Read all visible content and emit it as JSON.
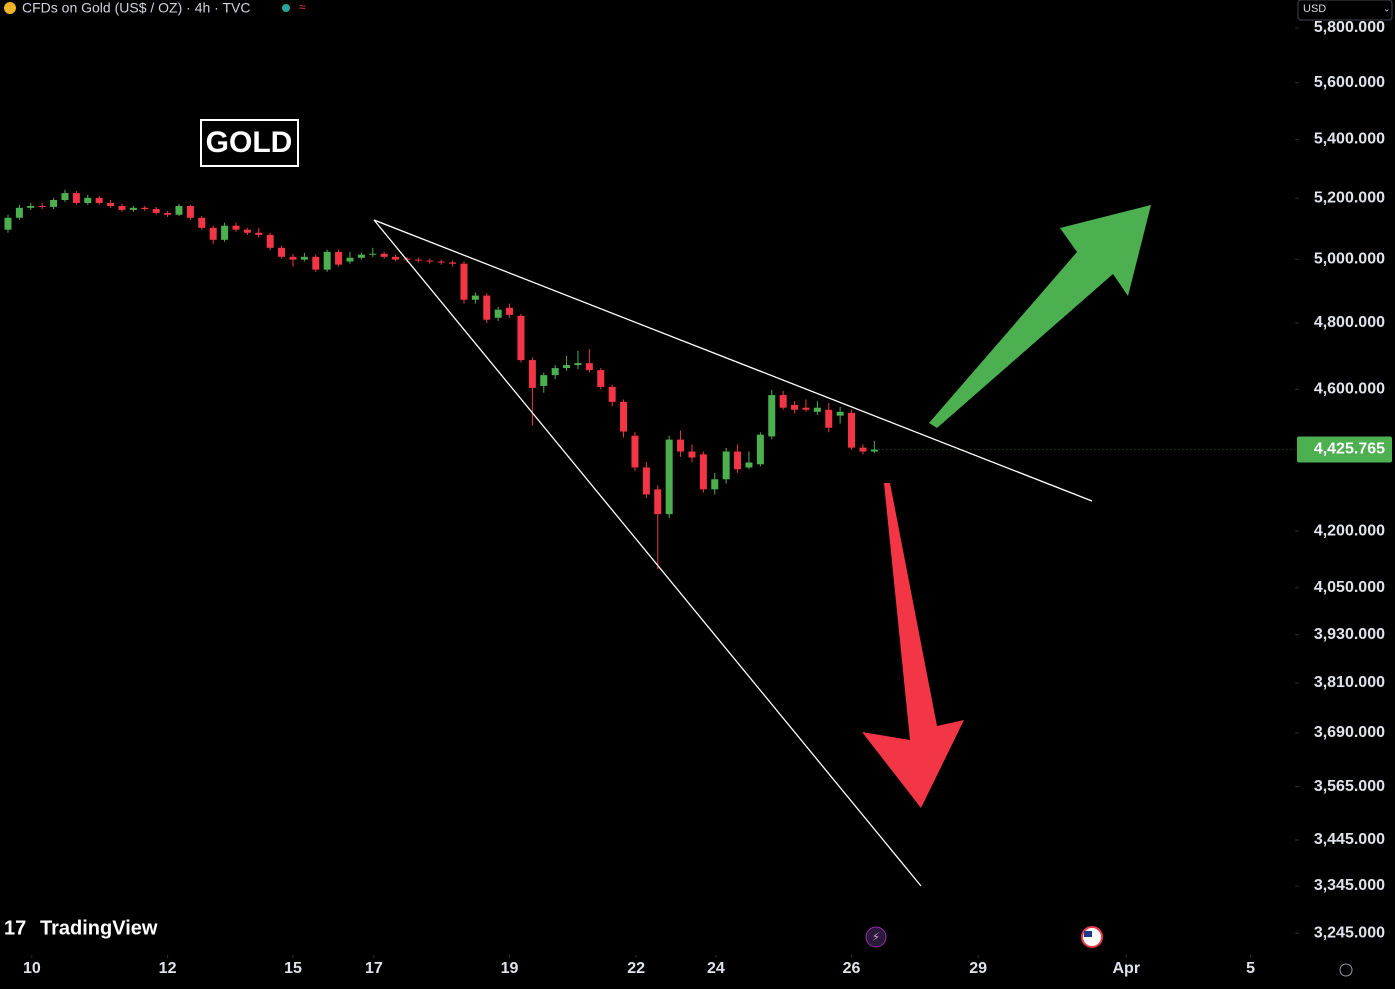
{
  "header": {
    "title": "CFDs on Gold (US$ / OZ) · 4h · TVC",
    "currency": "USD"
  },
  "watermark": "TradingView",
  "chart_data": {
    "type": "candlestick",
    "annotation": "GOLD",
    "up_color": "#4caf50",
    "down_color": "#f23645",
    "log_scale": true,
    "open": [
      5096,
      5135,
      5168,
      5174,
      5171,
      5194,
      5217,
      5184,
      5201,
      5184,
      5174,
      5161,
      5168,
      5164,
      5151,
      5145,
      5174,
      5135,
      5102,
      5063,
      5109,
      5096,
      5086,
      5079,
      5037,
      5008,
      4999,
      5008,
      4967,
      5024,
      4993,
      5005,
      5015,
      5018,
      5008,
      5002,
      4999,
      4996,
      4993,
      4990,
      4986,
      4872,
      4885,
      4816,
      4847,
      4822,
      4687,
      4610,
      4642,
      4663,
      4672,
      4678,
      4657,
      4607,
      4563,
      4465,
      4375,
      4314,
      4246,
      4454,
      4420,
      4412,
      4314,
      4342,
      4420,
      4375,
      4384,
      4463,
      4583,
      4554,
      4546,
      4534,
      4540,
      4523,
      4531,
      4431,
      4420
    ],
    "high": [
      5145,
      5178,
      5184,
      5184,
      5201,
      5228,
      5224,
      5211,
      5207,
      5194,
      5181,
      5174,
      5174,
      5171,
      5158,
      5181,
      5178,
      5141,
      5109,
      5119,
      5119,
      5102,
      5102,
      5086,
      5044,
      5018,
      5021,
      5015,
      5031,
      5031,
      5024,
      5021,
      5037,
      5024,
      5015,
      5008,
      5005,
      5002,
      4999,
      4996,
      4993,
      4895,
      4892,
      4850,
      4860,
      4828,
      4695,
      4650,
      4672,
      4700,
      4715,
      4720,
      4663,
      4613,
      4570,
      4475,
      4390,
      4325,
      4465,
      4480,
      4440,
      4420,
      4360,
      4430,
      4440,
      4420,
      4475,
      4598,
      4595,
      4565,
      4570,
      4565,
      4560,
      4548,
      4540,
      4440,
      4450
    ],
    "low": [
      5086,
      5128,
      5161,
      5164,
      5164,
      5187,
      5178,
      5178,
      5178,
      5168,
      5155,
      5155,
      5158,
      5145,
      5138,
      5141,
      5128,
      5096,
      5050,
      5057,
      5089,
      5079,
      5070,
      5030,
      5002,
      4977,
      4993,
      4960,
      4960,
      4977,
      4986,
      4999,
      5008,
      5002,
      4993,
      4990,
      4990,
      4986,
      4983,
      4977,
      4860,
      4860,
      4800,
      4806,
      4816,
      4680,
      4494,
      4590,
      4630,
      4655,
      4660,
      4650,
      4600,
      4550,
      4460,
      4365,
      4290,
      4099,
      4235,
      4405,
      4390,
      4305,
      4300,
      4330,
      4360,
      4370,
      4378,
      4455,
      4540,
      4530,
      4534,
      4525,
      4475,
      4500,
      4425,
      4412,
      4415
    ],
    "close": [
      5135,
      5168,
      5174,
      5171,
      5194,
      5217,
      5184,
      5201,
      5184,
      5174,
      5161,
      5168,
      5164,
      5151,
      5145,
      5174,
      5135,
      5102,
      5063,
      5109,
      5096,
      5086,
      5079,
      5037,
      5008,
      4999,
      5008,
      4967,
      5024,
      4983,
      5005,
      5015,
      5018,
      5008,
      4999,
      4999,
      4996,
      4993,
      4990,
      4986,
      4872,
      4885,
      4810,
      4841,
      4825,
      4687,
      4604,
      4642,
      4663,
      4672,
      4678,
      4657,
      4607,
      4563,
      4477,
      4375,
      4300,
      4246,
      4454,
      4420,
      4403,
      4314,
      4342,
      4420,
      4370,
      4389,
      4468,
      4583,
      4546,
      4540,
      4540,
      4546,
      4488,
      4534,
      4431,
      4420,
      4425.765
    ],
    "last_price": {
      "value": 4425.765,
      "label": "4,425.765"
    },
    "ylim": [
      3200,
      5905
    ],
    "yticks": [
      {
        "value": 5800,
        "label": "5,800.000"
      },
      {
        "value": 5600,
        "label": "5,600.000"
      },
      {
        "value": 5400,
        "label": "5,400.000"
      },
      {
        "value": 5200,
        "label": "5,200.000"
      },
      {
        "value": 5000,
        "label": "5,000.000"
      },
      {
        "value": 4800,
        "label": "4,800.000"
      },
      {
        "value": 4600,
        "label": "4,600.000"
      },
      {
        "value": 4200,
        "label": "4,200.000"
      },
      {
        "value": 4050,
        "label": "4,050.000"
      },
      {
        "value": 3930,
        "label": "3,930.000"
      },
      {
        "value": 3810,
        "label": "3,810.000"
      },
      {
        "value": 3690,
        "label": "3,690.000"
      },
      {
        "value": 3565,
        "label": "3,565.000"
      },
      {
        "value": 3445,
        "label": "3,445.000"
      },
      {
        "value": 3345,
        "label": "3,345.000"
      },
      {
        "value": 3245,
        "label": "3,245.000"
      }
    ],
    "xlim": [
      -0.7,
      112.9
    ],
    "xticks": [
      {
        "value": 2.1,
        "label": "10"
      },
      {
        "value": 14.0,
        "label": "12"
      },
      {
        "value": 25.0,
        "label": "15"
      },
      {
        "value": 32.1,
        "label": "17"
      },
      {
        "value": 44.0,
        "label": "19"
      },
      {
        "value": 55.1,
        "label": "22"
      },
      {
        "value": 62.1,
        "label": "24"
      },
      {
        "value": 74.0,
        "label": "26"
      },
      {
        "value": 85.1,
        "label": "29"
      },
      {
        "value": 98.1,
        "label": "Apr"
      },
      {
        "value": 109.0,
        "label": "5"
      }
    ]
  }
}
